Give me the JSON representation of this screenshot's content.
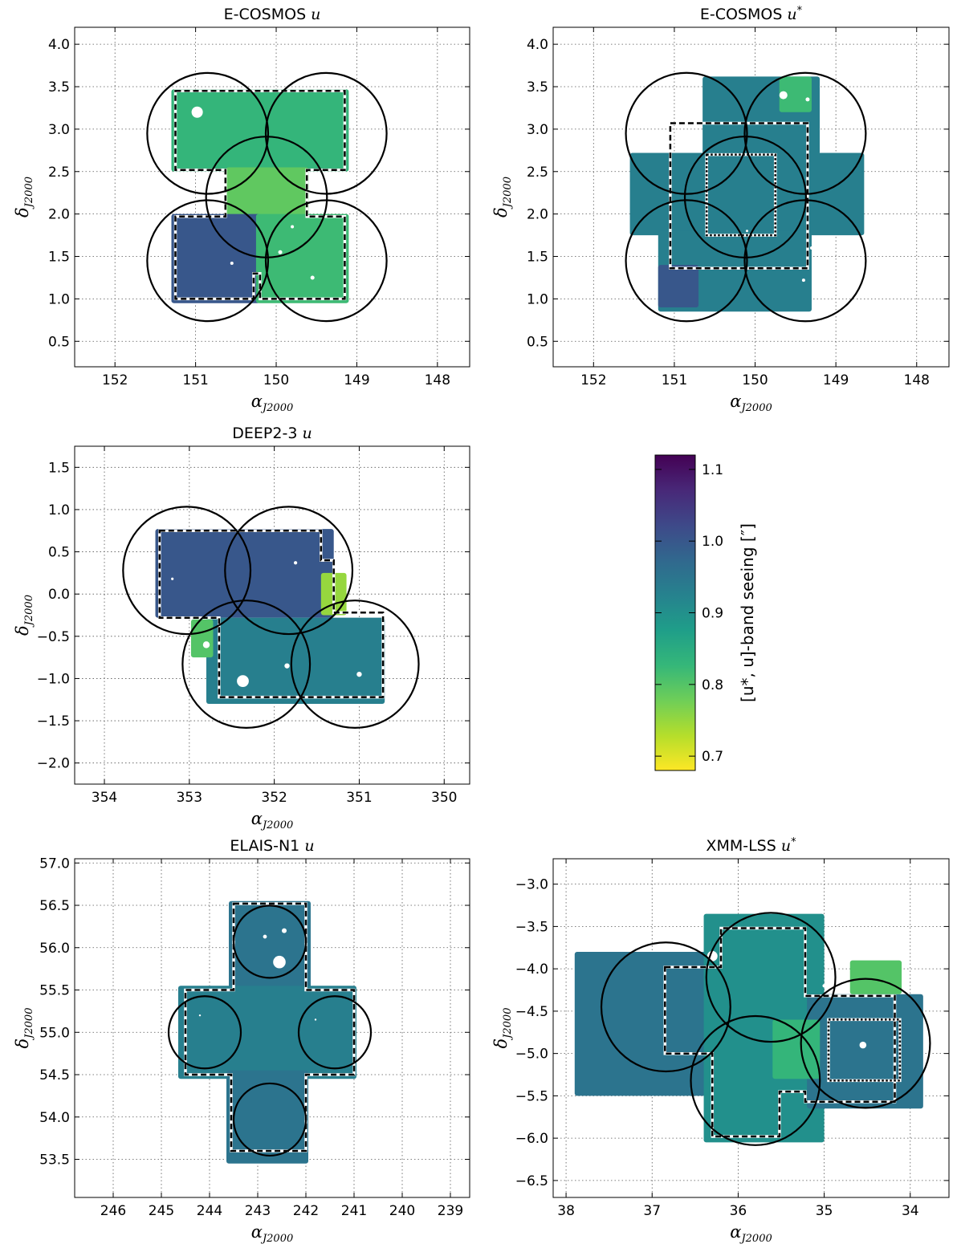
{
  "colormap": {
    "name": "viridis",
    "stops": [
      "#fde725",
      "#b5de2b",
      "#6ece58",
      "#35b779",
      "#1f9e89",
      "#26828e",
      "#31688e",
      "#3e4989",
      "#482878",
      "#440154"
    ]
  },
  "chart_data": [
    {
      "id": "ecosmos-u",
      "type": "heatmap",
      "title": "E-COSMOS",
      "title_band": "u",
      "xlabel": "α",
      "xlabel_sub": "J2000",
      "ylabel": "δ",
      "ylabel_sub": "J2000",
      "xlim": [
        152.5,
        147.6
      ],
      "ylim": [
        0.2,
        4.2
      ],
      "xticks": [
        152,
        151,
        150,
        149,
        148
      ],
      "yticks": [
        0.5,
        1.0,
        1.5,
        2.0,
        2.5,
        3.0,
        3.5,
        4.0
      ],
      "ytick_labels": [
        "0.5",
        "1.0",
        "1.5",
        "2.0",
        "2.5",
        "3.0",
        "3.5",
        "4.0"
      ],
      "grid": true,
      "pointings": [
        {
          "ra": 150.85,
          "dec": 2.95,
          "r": 0.75
        },
        {
          "ra": 149.38,
          "dec": 2.95,
          "r": 0.75
        },
        {
          "ra": 150.12,
          "dec": 2.2,
          "r": 0.75
        },
        {
          "ra": 150.85,
          "dec": 1.45,
          "r": 0.75
        },
        {
          "ra": 149.38,
          "dec": 1.45,
          "r": 0.75
        }
      ],
      "coverage": [
        {
          "ra": [
            151.3,
            149.1
          ],
          "dec": [
            2.5,
            3.47
          ],
          "seeing": 0.83
        },
        {
          "ra": [
            150.62,
            149.6
          ],
          "dec": [
            1.9,
            2.55
          ],
          "seeing": 0.79
        },
        {
          "ra": [
            151.3,
            150.2
          ],
          "dec": [
            0.95,
            2.0
          ],
          "seeing": 1.0
        },
        {
          "ra": [
            150.25,
            149.1
          ],
          "dec": [
            0.95,
            2.0
          ],
          "seeing": 0.82
        }
      ],
      "footprints": [
        {
          "style": "dashed",
          "path": [
            [
              151.25,
              3.45
            ],
            [
              150.15,
              3.45
            ],
            [
              150.15,
              3.45
            ],
            [
              149.15,
              3.45
            ],
            [
              149.15,
              2.52
            ],
            [
              149.62,
              2.52
            ],
            [
              149.62,
              1.97
            ],
            [
              149.15,
              1.97
            ],
            [
              149.15,
              1.0
            ],
            [
              150.2,
              1.0
            ],
            [
              150.2,
              1.3
            ],
            [
              150.28,
              1.3
            ],
            [
              150.28,
              1.0
            ],
            [
              151.25,
              1.0
            ],
            [
              151.25,
              1.97
            ],
            [
              150.63,
              1.97
            ],
            [
              150.63,
              2.52
            ],
            [
              151.25,
              2.52
            ],
            [
              151.25,
              3.45
            ]
          ]
        }
      ],
      "holes": [
        {
          "ra": 150.98,
          "dec": 3.2,
          "r": 0.07
        },
        {
          "ra": 149.95,
          "dec": 1.55,
          "r": 0.025
        },
        {
          "ra": 150.55,
          "dec": 1.42,
          "r": 0.02
        },
        {
          "ra": 149.55,
          "dec": 1.25,
          "r": 0.025
        },
        {
          "ra": 149.8,
          "dec": 1.85,
          "r": 0.02
        }
      ]
    },
    {
      "id": "ecosmos-ustar",
      "type": "heatmap",
      "title": "E-COSMOS",
      "title_band": "u*",
      "xlabel": "α",
      "xlabel_sub": "J2000",
      "ylabel": "δ",
      "ylabel_sub": "J2000",
      "xlim": [
        152.5,
        147.6
      ],
      "ylim": [
        0.2,
        4.2
      ],
      "xticks": [
        152,
        151,
        150,
        149,
        148
      ],
      "yticks": [
        0.5,
        1.0,
        1.5,
        2.0,
        2.5,
        3.0,
        3.5,
        4.0
      ],
      "ytick_labels": [
        "0.5",
        "1.0",
        "1.5",
        "2.0",
        "2.5",
        "3.0",
        "3.5",
        "4.0"
      ],
      "grid": true,
      "pointings": [
        {
          "ra": 150.85,
          "dec": 2.95,
          "r": 0.75
        },
        {
          "ra": 149.38,
          "dec": 2.95,
          "r": 0.75
        },
        {
          "ra": 150.12,
          "dec": 2.2,
          "r": 0.75
        },
        {
          "ra": 150.85,
          "dec": 1.45,
          "r": 0.75
        },
        {
          "ra": 149.38,
          "dec": 1.45,
          "r": 0.75
        }
      ],
      "coverage": [
        {
          "ra": [
            150.65,
            149.2
          ],
          "dec": [
            2.7,
            3.62
          ],
          "seeing": 0.93
        },
        {
          "ra": [
            151.55,
            148.65
          ],
          "dec": [
            1.75,
            2.72
          ],
          "seeing": 0.93
        },
        {
          "ra": [
            151.2,
            149.3
          ],
          "dec": [
            0.85,
            1.8
          ],
          "seeing": 0.93
        },
        {
          "ra": [
            151.2,
            150.7
          ],
          "dec": [
            0.9,
            1.4
          ],
          "seeing": 1.0
        },
        {
          "ra": [
            149.7,
            149.3
          ],
          "dec": [
            3.2,
            3.62
          ],
          "seeing": 0.82
        }
      ],
      "footprints": [
        {
          "style": "dashed",
          "path": [
            [
              151.05,
              3.07
            ],
            [
              149.35,
              3.07
            ],
            [
              149.35,
              1.36
            ],
            [
              151.05,
              1.36
            ],
            [
              151.05,
              3.07
            ]
          ]
        },
        {
          "style": "dotted",
          "path": [
            [
              150.6,
              2.7
            ],
            [
              149.75,
              2.7
            ],
            [
              149.75,
              1.75
            ],
            [
              150.6,
              1.75
            ],
            [
              150.6,
              2.7
            ]
          ]
        }
      ],
      "holes": [
        {
          "ra": 149.65,
          "dec": 3.4,
          "r": 0.05
        },
        {
          "ra": 149.35,
          "dec": 3.35,
          "r": 0.025
        },
        {
          "ra": 149.3,
          "dec": 1.6,
          "r": 0.02
        },
        {
          "ra": 149.4,
          "dec": 1.22,
          "r": 0.02
        },
        {
          "ra": 150.1,
          "dec": 1.8,
          "r": 0.015
        }
      ]
    },
    {
      "id": "deep23-u",
      "type": "heatmap",
      "title": "DEEP2-3",
      "title_band": "u",
      "xlabel": "α",
      "xlabel_sub": "J2000",
      "ylabel": "δ",
      "ylabel_sub": "J2000",
      "xlim": [
        354.35,
        349.7
      ],
      "ylim": [
        -2.25,
        1.75
      ],
      "xticks": [
        354,
        353,
        352,
        351,
        350
      ],
      "yticks": [
        -2.0,
        -1.5,
        -1.0,
        -0.5,
        0.0,
        0.5,
        1.0,
        1.5
      ],
      "ytick_labels": [
        "−2.0",
        "−1.5",
        "−1.0",
        "−0.5",
        "0.0",
        "0.5",
        "1.0",
        "1.5"
      ],
      "grid": true,
      "pointings": [
        {
          "ra": 353.03,
          "dec": 0.28,
          "r": 0.75
        },
        {
          "ra": 351.83,
          "dec": 0.28,
          "r": 0.75
        },
        {
          "ra": 352.33,
          "dec": -0.83,
          "r": 0.75
        },
        {
          "ra": 351.05,
          "dec": -0.83,
          "r": 0.75
        }
      ],
      "coverage": [
        {
          "ra": [
            353.4,
            351.3
          ],
          "dec": [
            -0.28,
            0.77
          ],
          "seeing": 1.0
        },
        {
          "ra": [
            352.8,
            350.7
          ],
          "dec": [
            -1.3,
            -0.28
          ],
          "seeing": 0.93
        },
        {
          "ra": [
            351.45,
            351.15
          ],
          "dec": [
            -0.25,
            0.25
          ],
          "seeing": 0.75
        },
        {
          "ra": [
            352.98,
            352.72
          ],
          "dec": [
            -0.75,
            -0.3
          ],
          "seeing": 0.8
        }
      ],
      "footprints": [
        {
          "style": "dashed",
          "path": [
            [
              353.35,
              0.75
            ],
            [
              351.45,
              0.75
            ],
            [
              351.45,
              0.4
            ],
            [
              351.3,
              0.4
            ],
            [
              351.3,
              -0.22
            ],
            [
              350.72,
              -0.22
            ],
            [
              350.72,
              -1.22
            ],
            [
              351.9,
              -1.22
            ],
            [
              352.65,
              -1.22
            ],
            [
              352.65,
              -0.28
            ],
            [
              353.35,
              -0.28
            ],
            [
              353.35,
              0.75
            ]
          ]
        }
      ],
      "holes": [
        {
          "ra": 352.37,
          "dec": -1.03,
          "r": 0.07
        },
        {
          "ra": 352.8,
          "dec": -0.6,
          "r": 0.04
        },
        {
          "ra": 351.85,
          "dec": -0.85,
          "r": 0.03
        },
        {
          "ra": 351.0,
          "dec": -0.95,
          "r": 0.03
        },
        {
          "ra": 351.75,
          "dec": 0.37,
          "r": 0.02
        },
        {
          "ra": 353.2,
          "dec": 0.18,
          "r": 0.015
        }
      ]
    },
    {
      "id": "elaisn1-u",
      "type": "heatmap",
      "title": "ELAIS-N1",
      "title_band": "u",
      "xlabel": "α",
      "xlabel_sub": "J2000",
      "ylabel": "δ",
      "ylabel_sub": "J2000",
      "xlim": [
        246.8,
        238.6
      ],
      "ylim": [
        53.05,
        57.05
      ],
      "xticks": [
        246,
        245,
        244,
        243,
        242,
        241,
        240,
        239
      ],
      "yticks": [
        53.5,
        54.0,
        54.5,
        55.0,
        55.5,
        56.0,
        56.5,
        57.0
      ],
      "ytick_labels": [
        "53.5",
        "54.0",
        "54.5",
        "55.0",
        "55.5",
        "56.0",
        "56.5",
        "57.0"
      ],
      "grid": true,
      "pointings": [
        {
          "ra": 242.75,
          "dec": 56.07,
          "r": 0.75
        },
        {
          "ra": 244.1,
          "dec": 55.0,
          "r": 0.75
        },
        {
          "ra": 241.4,
          "dec": 55.0,
          "r": 0.75
        },
        {
          "ra": 242.75,
          "dec": 53.97,
          "r": 0.75
        }
      ],
      "coverage": [
        {
          "ra": [
            243.6,
            241.9
          ],
          "dec": [
            55.45,
            56.55
          ],
          "seeing": 0.95
        },
        {
          "ra": [
            244.65,
            240.95
          ],
          "dec": [
            54.45,
            55.55
          ],
          "seeing": 0.93
        },
        {
          "ra": [
            243.65,
            241.95
          ],
          "dec": [
            53.45,
            54.55
          ],
          "seeing": 0.95
        }
      ],
      "footprints": [
        {
          "style": "dashed",
          "path": [
            [
              243.5,
              56.52
            ],
            [
              242.0,
              56.52
            ],
            [
              242.0,
              55.5
            ],
            [
              241.0,
              55.5
            ],
            [
              241.0,
              54.5
            ],
            [
              242.0,
              54.5
            ],
            [
              242.0,
              53.6
            ],
            [
              243.55,
              53.6
            ],
            [
              243.55,
              54.5
            ],
            [
              244.5,
              54.5
            ],
            [
              244.5,
              55.5
            ],
            [
              243.5,
              55.5
            ],
            [
              243.5,
              56.52
            ]
          ]
        }
      ],
      "holes": [
        {
          "ra": 242.55,
          "dec": 55.83,
          "r": 0.13
        },
        {
          "ra": 242.45,
          "dec": 56.2,
          "r": 0.05
        },
        {
          "ra": 242.85,
          "dec": 56.13,
          "r": 0.04
        },
        {
          "ra": 244.2,
          "dec": 55.2,
          "r": 0.02
        },
        {
          "ra": 241.8,
          "dec": 55.15,
          "r": 0.02
        }
      ]
    },
    {
      "id": "xmmlss-ustar",
      "type": "heatmap",
      "title": "XMM-LSS",
      "title_band": "u*",
      "xlabel": "α",
      "xlabel_sub": "J2000",
      "ylabel": "δ",
      "ylabel_sub": "J2000",
      "xlim": [
        38.15,
        33.55
      ],
      "ylim": [
        -6.7,
        -2.7
      ],
      "xticks": [
        38,
        37,
        36,
        35,
        34
      ],
      "yticks": [
        -6.5,
        -6.0,
        -5.5,
        -5.0,
        -4.5,
        -4.0,
        -3.5,
        -3.0
      ],
      "ytick_labels": [
        "−6.5",
        "−6.0",
        "−5.5",
        "−5.0",
        "−4.5",
        "−4.0",
        "−3.5",
        "−3.0"
      ],
      "grid": true,
      "pointings": [
        {
          "ra": 36.84,
          "dec": -4.45,
          "r": 0.75
        },
        {
          "ra": 35.62,
          "dec": -4.1,
          "r": 0.75
        },
        {
          "ra": 35.8,
          "dec": -5.32,
          "r": 0.75
        },
        {
          "ra": 34.52,
          "dec": -4.88,
          "r": 0.75
        }
      ],
      "coverage": [
        {
          "ra": [
            37.9,
            35.5
          ],
          "dec": [
            -5.5,
            -3.8
          ],
          "seeing": 0.95
        },
        {
          "ra": [
            36.4,
            35.0
          ],
          "dec": [
            -6.05,
            -3.35
          ],
          "seeing": 0.9
        },
        {
          "ra": [
            35.2,
            33.85
          ],
          "dec": [
            -5.65,
            -4.3
          ],
          "seeing": 0.95
        },
        {
          "ra": [
            34.7,
            34.1
          ],
          "dec": [
            -4.3,
            -3.9
          ],
          "seeing": 0.8
        },
        {
          "ra": [
            35.6,
            35.05
          ],
          "dec": [
            -5.3,
            -4.6
          ],
          "seeing": 0.83
        }
      ],
      "footprints": [
        {
          "style": "dashed",
          "path": [
            [
              36.85,
              -3.98
            ],
            [
              36.2,
              -3.98
            ],
            [
              36.2,
              -3.52
            ],
            [
              35.22,
              -3.52
            ],
            [
              35.22,
              -4.32
            ],
            [
              34.18,
              -4.32
            ],
            [
              34.18,
              -5.57
            ],
            [
              35.22,
              -5.57
            ],
            [
              35.22,
              -5.45
            ],
            [
              35.52,
              -5.45
            ],
            [
              35.52,
              -5.98
            ],
            [
              36.3,
              -5.98
            ],
            [
              36.3,
              -5.0
            ],
            [
              36.85,
              -5.0
            ],
            [
              36.85,
              -3.98
            ]
          ]
        },
        {
          "style": "dotted",
          "path": [
            [
              34.95,
              -4.6
            ],
            [
              34.12,
              -4.6
            ],
            [
              34.12,
              -5.32
            ],
            [
              34.95,
              -5.32
            ],
            [
              34.95,
              -4.6
            ]
          ]
        }
      ],
      "holes": [
        {
          "ra": 36.3,
          "dec": -3.85,
          "r": 0.06
        },
        {
          "ra": 34.55,
          "dec": -4.9,
          "r": 0.04
        },
        {
          "ra": 35.0,
          "dec": -4.2,
          "r": 0.02
        }
      ]
    },
    {
      "id": "colorbar",
      "type": "colorbar",
      "label": "[u*, u]-band seeing  [″]",
      "range": [
        0.68,
        1.12
      ],
      "ticks": [
        0.7,
        0.8,
        0.9,
        1.0,
        1.1
      ],
      "tick_labels": [
        "0.7",
        "0.8",
        "0.9",
        "1.0",
        "1.1"
      ]
    }
  ]
}
